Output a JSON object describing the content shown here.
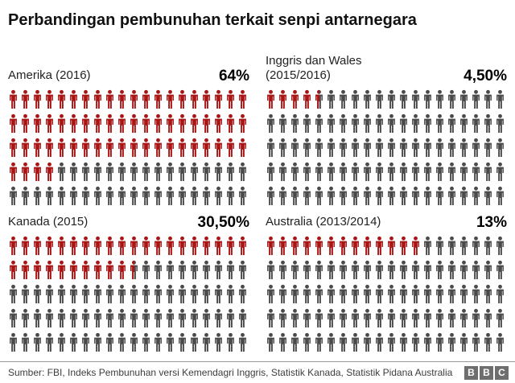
{
  "title": "Perbandingan pembunuhan terkait senpi antarnegara",
  "colors": {
    "highlight_red": "#a91414",
    "muted_gray": "#4a4a4a",
    "divider": "#999999",
    "logo_gray": "#6e6e6e"
  },
  "panels": [
    {
      "label": "Amerika (2016)",
      "value_label": "64%",
      "icons": {
        "total": 100,
        "per_row": 20,
        "rows": 5,
        "full_red": 64,
        "half_red": 0
      }
    },
    {
      "label": "Inggris dan Wales (2015/2016)",
      "value_label": "4,50%",
      "icons": {
        "total": 100,
        "per_row": 20,
        "rows": 5,
        "full_red": 4,
        "half_red": 1
      }
    },
    {
      "label": "Kanada (2015)",
      "value_label": "30,50%",
      "icons": {
        "total": 100,
        "per_row": 20,
        "rows": 5,
        "full_red": 30,
        "half_red": 1
      }
    },
    {
      "label": "Australia (2013/2014)",
      "value_label": "13%",
      "icons": {
        "total": 100,
        "per_row": 20,
        "rows": 5,
        "full_red": 13,
        "half_red": 0
      }
    }
  ],
  "footer": {
    "source": "Sumber: FBI, Indeks Pembunuhan versi Kemendagri Inggris, Statistik Kanada, Statistik Pidana Australia",
    "logo_letters": [
      "B",
      "B",
      "C"
    ]
  },
  "chart_data": {
    "type": "bar",
    "subtype": "pictogram",
    "title": "Perbandingan pembunuhan terkait senpi antarnegara",
    "unit": "percent",
    "categories": [
      "Amerika (2016)",
      "Inggris dan Wales (2015/2016)",
      "Kanada (2015)",
      "Australia (2013/2014)"
    ],
    "values": [
      64,
      4.5,
      30.5,
      13
    ],
    "value_labels": [
      "64%",
      "4,50%",
      "30,50%",
      "13%"
    ],
    "icons_per_panel": 100,
    "icons_per_row": 20,
    "rows_per_panel": 5,
    "highlight_color": "#a91414",
    "base_color": "#4a4a4a",
    "legend": "none",
    "source": "FBI, Indeks Pembunuhan versi Kemendagri Inggris, Statistik Kanada, Statistik Pidana Australia"
  }
}
